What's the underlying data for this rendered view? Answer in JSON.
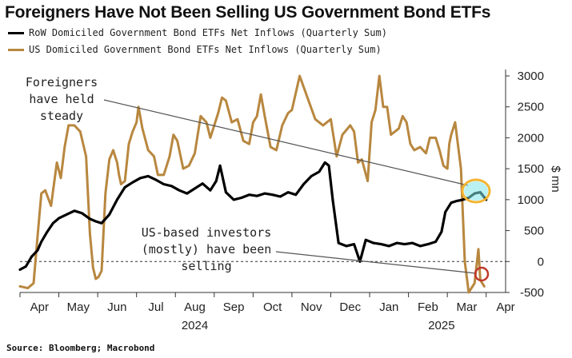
{
  "header": {
    "title": "Foreigners Have Not Been Selling US Government Bond ETFs"
  },
  "legend": {
    "row_label": "RoW Domiciled Government Bond ETFs Net Inflows (Quarterly Sum)",
    "us_label": "US Domiciled Government Bond ETFs Net Inflows (Quarterly Sum)"
  },
  "colors": {
    "row": "#000000",
    "us": "#b8873f",
    "highlight_yellow": "#f2b431",
    "highlight_cyan": "#7fe3e8",
    "highlight_red": "#c0392b"
  },
  "footer": {
    "source": "Source: Bloomberg; Macrobond"
  },
  "chart_data": {
    "type": "line",
    "title": "Foreigners Have Not Been Selling US Government Bond ETFs",
    "xlabel": "",
    "ylabel": "$ mn",
    "ylim": [
      -500,
      3000
    ],
    "y_ticks": [
      -500,
      0,
      500,
      1000,
      1500,
      2000,
      2500,
      3000
    ],
    "y_tick_labels": [
      "-500",
      "0",
      "500",
      "1000",
      "1500",
      "2000",
      "2500",
      "3000"
    ],
    "x_range_months": [
      0,
      12.5
    ],
    "month_labels": [
      "Apr",
      "May",
      "Jun",
      "Jul",
      "Aug",
      "Sep",
      "Oct",
      "Nov",
      "Dec",
      "Jan",
      "Feb",
      "Mar",
      "Apr"
    ],
    "year_labels": [
      {
        "label": "2024",
        "month": 4.5
      },
      {
        "label": "2025",
        "month": 10.85
      }
    ],
    "zero_line": "dashed",
    "series": [
      {
        "name": "RoW Domiciled Government Bond ETFs Net Inflows (Quarterly Sum)",
        "color": "#000000",
        "x": [
          0.0,
          0.15,
          0.3,
          0.45,
          0.55,
          0.7,
          0.85,
          1.0,
          1.2,
          1.4,
          1.6,
          1.8,
          1.95,
          2.1,
          2.3,
          2.5,
          2.7,
          2.9,
          3.1,
          3.3,
          3.5,
          3.7,
          3.9,
          4.1,
          4.3,
          4.5,
          4.7,
          4.9,
          5.05,
          5.15,
          5.3,
          5.5,
          5.7,
          5.9,
          6.1,
          6.3,
          6.5,
          6.7,
          6.9,
          7.1,
          7.3,
          7.5,
          7.7,
          7.85,
          7.95,
          8.05,
          8.2,
          8.4,
          8.6,
          8.75,
          8.9,
          9.1,
          9.3,
          9.5,
          9.7,
          9.9,
          10.1,
          10.3,
          10.5,
          10.7,
          10.85,
          10.95,
          11.1,
          11.25,
          11.4,
          11.55,
          11.7,
          11.85,
          12.0
        ],
        "values": [
          -130,
          -80,
          80,
          180,
          320,
          480,
          620,
          700,
          760,
          820,
          780,
          690,
          650,
          620,
          760,
          1000,
          1200,
          1280,
          1350,
          1380,
          1320,
          1250,
          1220,
          1150,
          1100,
          1180,
          1260,
          1150,
          1300,
          1550,
          1120,
          1000,
          1030,
          1080,
          1060,
          1100,
          1080,
          1050,
          1120,
          1080,
          1250,
          1380,
          1450,
          1600,
          1550,
          1000,
          300,
          250,
          280,
          0,
          350,
          300,
          280,
          250,
          300,
          280,
          300,
          250,
          280,
          320,
          480,
          800,
          950,
          980,
          1000,
          1030,
          1100,
          1120,
          1000
        ]
      },
      {
        "name": "US Domiciled Government Bond ETFs Net Inflows (Quarterly Sum)",
        "color": "#b8873f",
        "x": [
          0.0,
          0.2,
          0.35,
          0.45,
          0.55,
          0.65,
          0.8,
          0.95,
          1.05,
          1.15,
          1.25,
          1.4,
          1.55,
          1.7,
          1.8,
          1.88,
          1.95,
          2.02,
          2.1,
          2.2,
          2.3,
          2.4,
          2.5,
          2.55,
          2.6,
          2.7,
          2.8,
          2.9,
          3.0,
          3.05,
          3.15,
          3.3,
          3.45,
          3.55,
          3.7,
          3.85,
          3.95,
          4.05,
          4.2,
          4.35,
          4.5,
          4.65,
          4.8,
          4.9,
          5.0,
          5.1,
          5.2,
          5.3,
          5.45,
          5.6,
          5.75,
          5.9,
          6.0,
          6.1,
          6.2,
          6.3,
          6.45,
          6.6,
          6.75,
          6.9,
          7.0,
          7.2,
          7.4,
          7.6,
          7.8,
          8.0,
          8.15,
          8.3,
          8.5,
          8.6,
          8.7,
          8.8,
          8.95,
          9.05,
          9.15,
          9.25,
          9.35,
          9.45,
          9.55,
          9.65,
          9.75,
          9.85,
          9.95,
          10.05,
          10.15,
          10.3,
          10.45,
          10.55,
          10.7,
          10.8,
          10.9,
          11.0,
          11.05,
          11.1,
          11.2,
          11.35,
          11.45,
          11.55,
          11.6,
          11.7,
          11.8,
          11.85,
          11.95
        ],
        "values": [
          -400,
          -430,
          -350,
          400,
          1100,
          1150,
          900,
          1600,
          1350,
          1850,
          2200,
          2200,
          2100,
          1700,
          450,
          -100,
          -280,
          -250,
          -150,
          1100,
          1650,
          1800,
          1600,
          1400,
          1250,
          1300,
          1900,
          2100,
          2250,
          2500,
          2150,
          1800,
          1700,
          1400,
          1400,
          1700,
          2050,
          1950,
          1500,
          1550,
          1750,
          2350,
          2250,
          2000,
          2200,
          2400,
          2650,
          2600,
          2250,
          2300,
          1950,
          1900,
          2250,
          2350,
          2700,
          2350,
          1850,
          1800,
          2200,
          2400,
          2450,
          3000,
          2650,
          2300,
          2200,
          2300,
          1700,
          2050,
          2200,
          2100,
          1600,
          1650,
          1300,
          2250,
          2450,
          3000,
          2500,
          2500,
          2050,
          2100,
          2150,
          2350,
          2250,
          1900,
          1800,
          1850,
          1750,
          2000,
          2000,
          1800,
          1550,
          1500,
          1900,
          2050,
          2250,
          1500,
          0,
          -500,
          -450,
          -350,
          200,
          -300,
          -400
        ]
      }
    ],
    "annotations": [
      {
        "lines": [
          "Foreigners",
          "have held",
          "steady"
        ]
      },
      {
        "lines": [
          "US-based investors",
          "(mostly) have been",
          "selling"
        ]
      }
    ]
  }
}
